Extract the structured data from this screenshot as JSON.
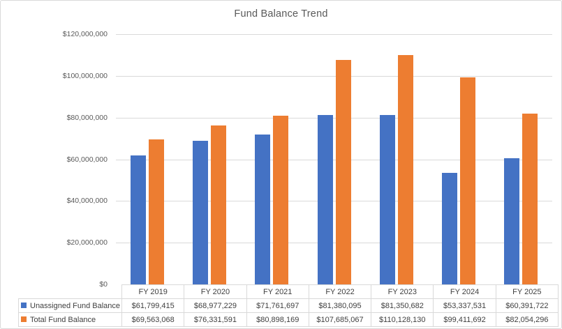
{
  "chart_data": {
    "type": "bar",
    "title": "Fund Balance Trend",
    "categories": [
      "FY 2019",
      "FY 2020",
      "FY 2021",
      "FY 2022",
      "FY 2023",
      "FY 2024",
      "FY 2025"
    ],
    "series": [
      {
        "name": "Unassigned Fund Balance",
        "color": "#4472C4",
        "values": [
          61799415,
          68977229,
          71761697,
          81380095,
          81350682,
          53337531,
          60391722
        ],
        "labels": [
          "$61,799,415",
          "$68,977,229",
          "$71,761,697",
          "$81,380,095",
          "$81,350,682",
          "$53,337,531",
          "$60,391,722"
        ]
      },
      {
        "name": "Total Fund Balance",
        "color": "#ED7D31",
        "values": [
          69563068,
          76331591,
          80898169,
          107685067,
          110128130,
          99411692,
          82054296
        ],
        "labels": [
          "$69,563,068",
          "$76,331,591",
          "$80,898,169",
          "$107,685,067",
          "$110,128,130",
          "$99,411,692",
          "$82,054,296"
        ]
      }
    ],
    "ylim": [
      0,
      120000000
    ],
    "yticks": [
      {
        "value": 0,
        "label": "$0"
      },
      {
        "value": 20000000,
        "label": "$20,000,000"
      },
      {
        "value": 40000000,
        "label": "$40,000,000"
      },
      {
        "value": 60000000,
        "label": "$60,000,000"
      },
      {
        "value": 80000000,
        "label": "$80,000,000"
      },
      {
        "value": 100000000,
        "label": "$100,000,000"
      },
      {
        "value": 120000000,
        "label": "$120,000,000"
      }
    ],
    "grid": true,
    "legend_position": "table-left"
  },
  "colors": {
    "gridline": "#D9D9D9",
    "chart_border": "#D9D9D9",
    "axis_text": "#595959",
    "table_text": "#404040",
    "table_border": "#D9D9D9",
    "background": "#FFFFFF"
  }
}
